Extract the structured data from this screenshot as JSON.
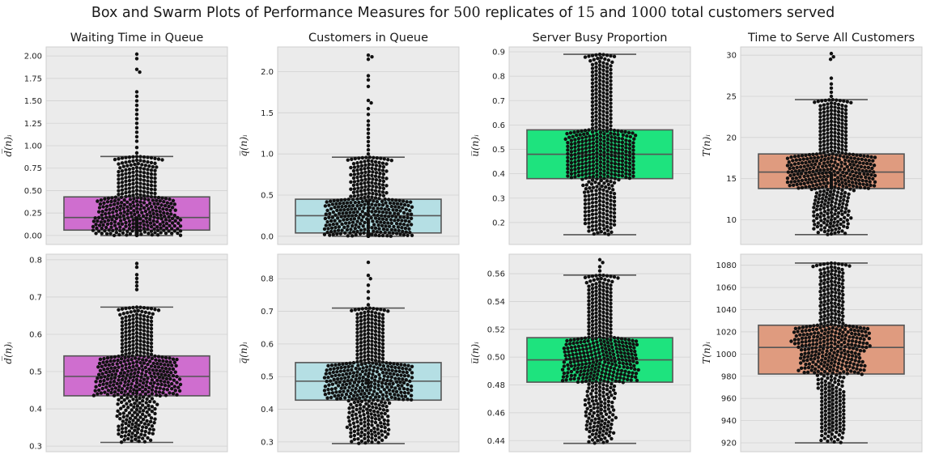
{
  "figure": {
    "title_pre": "Box and Swarm Plots of Performance Measures for ",
    "n_reps": "500",
    "title_mid": " replicates of ",
    "n_small": "15",
    "title_and": " and ",
    "n_large": "1000",
    "title_post": " total customers served"
  },
  "colors": {
    "panel_bg": "#ebebeb",
    "grid": "#d2d2d2",
    "point": "#111111",
    "box_edge": "#555555",
    "waiting": "#cf6ecf",
    "customers": "#b5dfe4",
    "busy": "#1ee37e",
    "serve": "#df9b7f"
  },
  "chart_data": [
    {
      "type": "box-swarm",
      "title": "Waiting Time in Queue",
      "ylabel": "d̅(n)ᵢ",
      "ylim": [
        -0.1,
        2.1
      ],
      "ticks": [
        0,
        0.25,
        0.5,
        0.75,
        1.0,
        1.25,
        1.5,
        1.75,
        2.0
      ],
      "tick_labels": [
        "0.00",
        "0.25",
        "0.50",
        "0.75",
        "1.00",
        "1.25",
        "1.50",
        "1.75",
        "2.00"
      ],
      "color": "waiting",
      "n_points": 500,
      "box": {
        "whisker_low": 0.0,
        "q1": 0.06,
        "median": 0.2,
        "q3": 0.43,
        "whisker_high": 0.88
      },
      "outliers": [
        0.92,
        0.98,
        1.05,
        1.1,
        1.15,
        1.2,
        1.25,
        1.3,
        1.35,
        1.4,
        1.45,
        1.5,
        1.55,
        1.6,
        1.82,
        1.85,
        1.97,
        2.02
      ]
    },
    {
      "type": "box-swarm",
      "title": "Customers in Queue",
      "ylabel": "q̅(n)ᵢ",
      "ylim": [
        -0.1,
        2.3
      ],
      "ticks": [
        0,
        0.5,
        1.0,
        1.5,
        2.0
      ],
      "tick_labels": [
        "0.0",
        "0.5",
        "1.0",
        "1.5",
        "2.0"
      ],
      "color": "customers",
      "n_points": 500,
      "box": {
        "whisker_low": 0.0,
        "q1": 0.04,
        "median": 0.25,
        "q3": 0.45,
        "whisker_high": 0.96
      },
      "outliers": [
        1.0,
        1.05,
        1.1,
        1.15,
        1.2,
        1.25,
        1.3,
        1.35,
        1.4,
        1.48,
        1.55,
        1.62,
        1.65,
        1.82,
        1.9,
        1.95,
        2.15,
        2.18,
        2.2
      ]
    },
    {
      "type": "box-swarm",
      "title": "Server Busy Proportion",
      "ylabel": "u̅(n)ᵢ",
      "ylim": [
        0.11,
        0.92
      ],
      "ticks": [
        0.2,
        0.3,
        0.4,
        0.5,
        0.6,
        0.7,
        0.8,
        0.9
      ],
      "tick_labels": [
        "0.2",
        "0.3",
        "0.4",
        "0.5",
        "0.6",
        "0.7",
        "0.8",
        "0.9"
      ],
      "color": "busy",
      "n_points": 500,
      "box": {
        "whisker_low": 0.15,
        "q1": 0.38,
        "median": 0.48,
        "q3": 0.58,
        "whisker_high": 0.89
      },
      "outliers": []
    },
    {
      "type": "box-swarm",
      "title": "Time to Serve All Customers",
      "ylabel": "T(n)ᵢ",
      "ylim": [
        7.0,
        31.0
      ],
      "ticks": [
        10,
        15,
        20,
        25,
        30
      ],
      "tick_labels": [
        "10",
        "15",
        "20",
        "25",
        "30"
      ],
      "color": "serve",
      "n_points": 500,
      "box": {
        "whisker_low": 8.2,
        "q1": 13.8,
        "median": 15.8,
        "q3": 18.0,
        "whisker_high": 24.6
      },
      "outliers": [
        25.0,
        25.5,
        26.0,
        26.5,
        27.2,
        29.5,
        29.8,
        30.2
      ]
    },
    {
      "type": "box-swarm",
      "title": "",
      "ylabel": "d̅(n)ᵢ",
      "ylim": [
        0.285,
        0.815
      ],
      "ticks": [
        0.3,
        0.4,
        0.5,
        0.6,
        0.7,
        0.8
      ],
      "tick_labels": [
        "0.3",
        "0.4",
        "0.5",
        "0.6",
        "0.7",
        "0.8"
      ],
      "color": "waiting",
      "n_points": 500,
      "box": {
        "whisker_low": 0.31,
        "q1": 0.435,
        "median": 0.487,
        "q3": 0.542,
        "whisker_high": 0.673
      },
      "outliers": [
        0.72,
        0.73,
        0.74,
        0.75,
        0.76,
        0.78,
        0.79
      ]
    },
    {
      "type": "box-swarm",
      "title": "",
      "ylabel": "q̅(n)ᵢ",
      "ylim": [
        0.27,
        0.875
      ],
      "ticks": [
        0.3,
        0.4,
        0.5,
        0.6,
        0.7,
        0.8
      ],
      "tick_labels": [
        "0.3",
        "0.4",
        "0.5",
        "0.6",
        "0.7",
        "0.8"
      ],
      "color": "customers",
      "n_points": 500,
      "box": {
        "whisker_low": 0.295,
        "q1": 0.428,
        "median": 0.486,
        "q3": 0.543,
        "whisker_high": 0.71
      },
      "outliers": [
        0.72,
        0.74,
        0.76,
        0.78,
        0.8,
        0.81,
        0.85
      ]
    },
    {
      "type": "box-swarm",
      "title": "",
      "ylabel": "u̅(n)ᵢ",
      "ylim": [
        0.432,
        0.574
      ],
      "ticks": [
        0.44,
        0.46,
        0.48,
        0.5,
        0.52,
        0.54,
        0.56
      ],
      "tick_labels": [
        "0.44",
        "0.46",
        "0.48",
        "0.50",
        "0.52",
        "0.54",
        "0.56"
      ],
      "color": "busy",
      "n_points": 500,
      "box": {
        "whisker_low": 0.438,
        "q1": 0.482,
        "median": 0.498,
        "q3": 0.514,
        "whisker_high": 0.559
      },
      "outliers": [
        0.562,
        0.565,
        0.568,
        0.57
      ]
    },
    {
      "type": "box-swarm",
      "title": "",
      "ylabel": "T(n)ᵢ",
      "ylim": [
        912,
        1090
      ],
      "ticks": [
        920,
        940,
        960,
        980,
        1000,
        1020,
        1040,
        1060,
        1080
      ],
      "tick_labels": [
        "920",
        "940",
        "960",
        "980",
        "1000",
        "1020",
        "1040",
        "1060",
        "1080"
      ],
      "color": "serve",
      "n_points": 500,
      "box": {
        "whisker_low": 920,
        "q1": 982,
        "median": 1006,
        "q3": 1026,
        "whisker_high": 1082
      },
      "outliers": []
    }
  ]
}
